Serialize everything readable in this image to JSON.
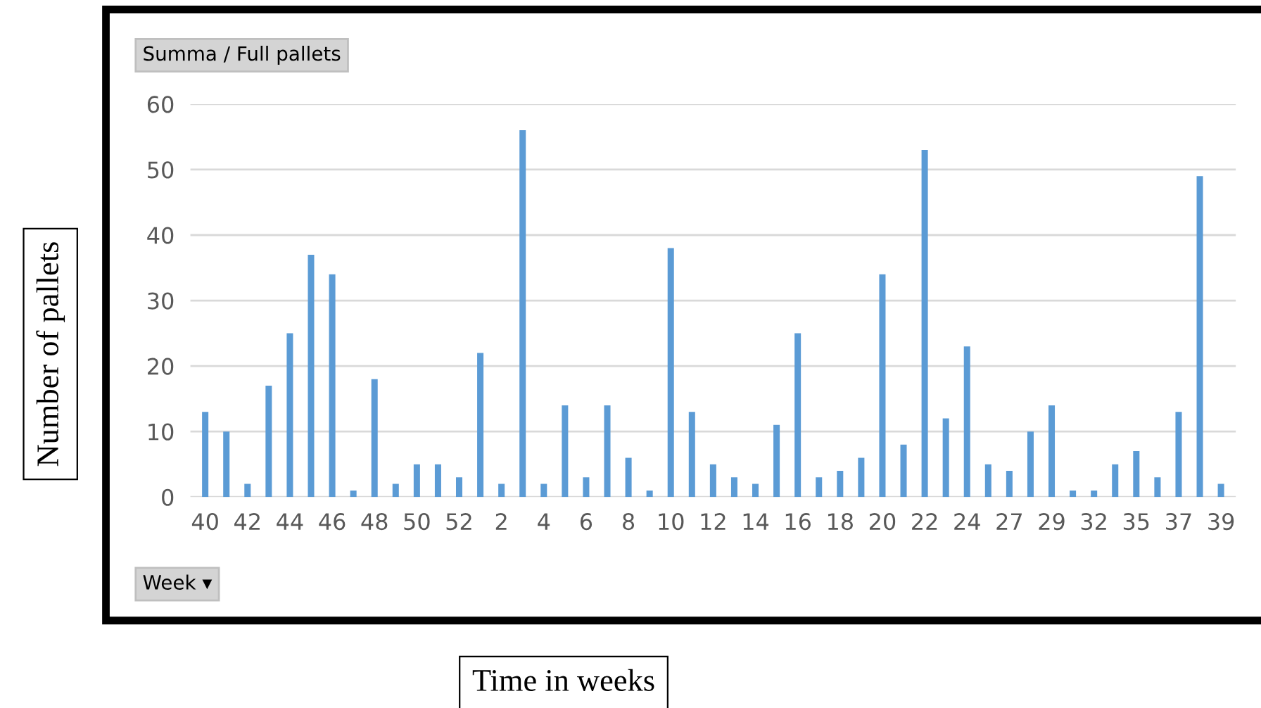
{
  "chart_data": {
    "type": "bar",
    "xlabel": "Time in weeks",
    "ylabel": "Number of pallets",
    "annotations": [
      "Summa / Full pallets",
      "Week ▾"
    ],
    "categories": [
      "40",
      null,
      "42",
      null,
      "44",
      null,
      "46",
      null,
      "48",
      null,
      "50",
      null,
      "52",
      null,
      "2",
      null,
      "4",
      null,
      "6",
      null,
      "8",
      null,
      "10",
      null,
      "12",
      null,
      "14",
      null,
      "16",
      null,
      "18",
      null,
      "20",
      null,
      "22",
      null,
      "24",
      null,
      "27",
      null,
      "29",
      null,
      "32",
      null,
      "35",
      null,
      "37",
      null,
      "39"
    ],
    "values": [
      13,
      10,
      2,
      17,
      25,
      37,
      34,
      1,
      18,
      2,
      5,
      5,
      3,
      22,
      2,
      56,
      2,
      14,
      3,
      14,
      6,
      1,
      38,
      13,
      5,
      3,
      2,
      11,
      25,
      3,
      4,
      6,
      34,
      8,
      53,
      12,
      23,
      5,
      4,
      10,
      14,
      1,
      1,
      5,
      7,
      3,
      13,
      49,
      2
    ],
    "color": "#5b9bd5",
    "ylim": [
      0,
      60
    ],
    "yticks": [
      0,
      10,
      20,
      30,
      40,
      50,
      60
    ],
    "grid": "y",
    "legend": false
  }
}
